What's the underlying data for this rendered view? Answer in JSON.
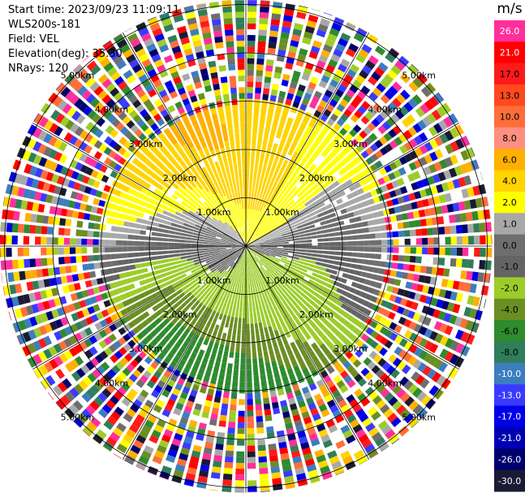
{
  "header": {
    "start_time": "Start time: 2023/09/23 11:09:11",
    "station": "WLS200s-181",
    "field": "Field: VEL",
    "elevation": "Elevation(deg): 35.30",
    "nrays": "NRays: 120"
  },
  "chart_data": {
    "type": "heatmap",
    "subtype": "radar-ppi",
    "field": "VEL",
    "station": "WLS200s-181",
    "elevation_deg": 35.3,
    "n_rays": 120,
    "range_unit": "km",
    "range_rings_km": [
      1.0,
      2.0,
      3.0,
      4.0,
      5.0
    ],
    "ring_labels": [
      "1.00km",
      "2.00km",
      "3.00km",
      "4.00km",
      "5.00km"
    ],
    "azimuth_spokes_deg": [
      0,
      30,
      60,
      90,
      120,
      150,
      180,
      210,
      240,
      270,
      300,
      330
    ],
    "colorbar": {
      "unit": "m/s",
      "tick_labels": [
        "26.0",
        "21.0",
        "17.0",
        "13.0",
        "10.0",
        "8.0",
        "6.0",
        "4.0",
        "2.0",
        "1.0",
        "0.0",
        "-1.0",
        "-2.0",
        "-4.0",
        "-6.0",
        "-8.0",
        "-10.0",
        "-13.0",
        "-17.0",
        "-21.0",
        "-26.0",
        "-30.0"
      ],
      "colors": [
        "#ff2f9c",
        "#ff0000",
        "#ff1a1a",
        "#ff4a1f",
        "#ff6e3a",
        "#ff8f80",
        "#ffb000",
        "#ffd400",
        "#ffff00",
        "#a8a8a8",
        "#6e6e6e",
        "#646464",
        "#9ccc2a",
        "#6b8e23",
        "#2e8b2e",
        "#2f7e5a",
        "#3c7dbf",
        "#3a3aff",
        "#0000e6",
        "#0000b3",
        "#00006e",
        "#1a1a33"
      ]
    },
    "pattern": {
      "coherent_max_range_km": 3.0,
      "noisy_beyond_km": 3.0,
      "north_half_velocity": "positive (yellow/orange, 2 to 6 m/s)",
      "south_half_velocity": "negative (green, -2 to -8 m/s)",
      "zero_band": "gray zone running west-east through centre"
    }
  }
}
